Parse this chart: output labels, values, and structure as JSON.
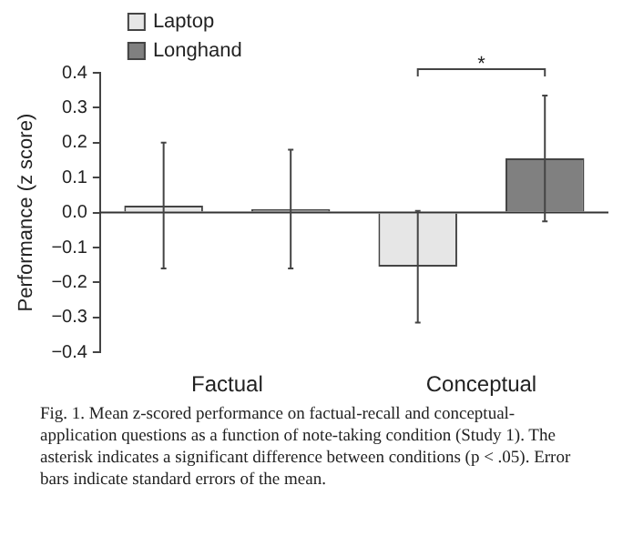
{
  "chart_data": {
    "type": "bar",
    "ylabel": "Performance (z score)",
    "categories": [
      "Factual",
      "Conceptual"
    ],
    "series": [
      {
        "name": "Laptop",
        "color": "#e6e6e6",
        "values": [
          0.02,
          -0.155
        ],
        "errors": [
          [
            -0.16,
            0.2
          ],
          [
            -0.315,
            0.005
          ]
        ]
      },
      {
        "name": "Longhand",
        "color": "#808080",
        "values": [
          0.01,
          0.155
        ],
        "errors": [
          [
            -0.16,
            0.18
          ],
          [
            -0.025,
            0.335
          ]
        ]
      }
    ],
    "ylim": [
      -0.4,
      0.4
    ],
    "yticks": [
      {
        "value": -0.4,
        "label": "−0.4"
      },
      {
        "value": -0.3,
        "label": "−0.3"
      },
      {
        "value": -0.2,
        "label": "−0.2"
      },
      {
        "value": -0.1,
        "label": "−0.1"
      },
      {
        "value": 0,
        "label": "0.0"
      },
      {
        "value": 0.1,
        "label": "0.1"
      },
      {
        "value": 0.2,
        "label": "0.2"
      },
      {
        "value": 0.3,
        "label": "0.3"
      },
      {
        "value": 0.4,
        "label": "0.4"
      }
    ],
    "legend": "top left",
    "annotations": [
      "*",
      "Fig. 1. Mean z-scored performance on factual-recall and conceptual-application questions as a function of note-taking condition (Study 1). The asterisk indicates a significant difference between conditions (p < .05). Error bars indicate standard errors of the mean."
    ]
  }
}
